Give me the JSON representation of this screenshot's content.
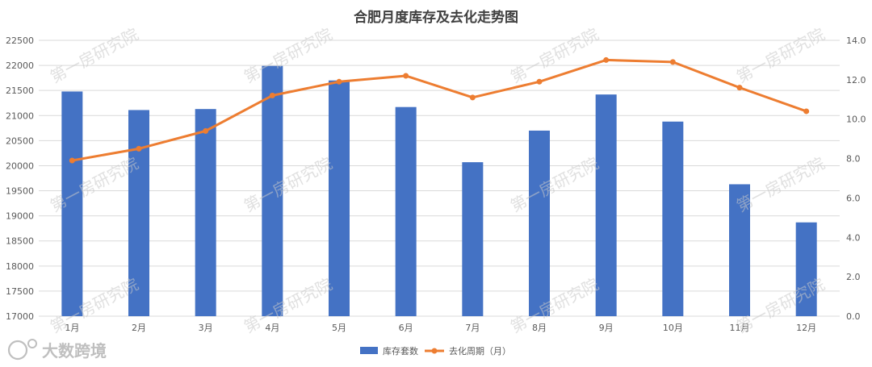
{
  "chart_data": {
    "type": "bar+line",
    "title": "合肥月度库存及去化走势图",
    "categories": [
      "1月",
      "2月",
      "3月",
      "4月",
      "5月",
      "6月",
      "7月",
      "8月",
      "9月",
      "10月",
      "11月",
      "12月"
    ],
    "series": [
      {
        "name": "库存套数",
        "type": "bar",
        "axis": "left",
        "color": "#4472c4",
        "values": [
          21480,
          21110,
          21130,
          21990,
          21700,
          21170,
          20070,
          20700,
          21420,
          20880,
          19630,
          18870
        ]
      },
      {
        "name": "去化周期（月）",
        "type": "line",
        "axis": "right",
        "color": "#ed7d31",
        "values": [
          7.9,
          8.5,
          9.4,
          11.2,
          11.9,
          12.2,
          11.1,
          11.9,
          13.0,
          12.9,
          11.6,
          10.4
        ]
      }
    ],
    "y_left": {
      "min": 17000,
      "max": 22500,
      "step": 500
    },
    "y_right": {
      "min": 0,
      "max": 14,
      "step": 2,
      "decimals": 1
    },
    "legend": "bottom",
    "grid": true
  },
  "watermark": "第一房研究院",
  "brand": {
    "text": "大数跨境"
  }
}
